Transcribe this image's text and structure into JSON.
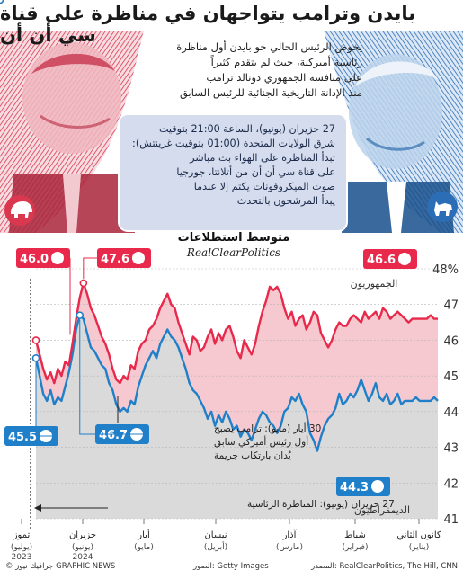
{
  "title": "بايدن وترامب يتواجهان في مناظرة على قناة سي أن أن",
  "intro": [
    "يخوض الرئيس الحالي جو بايدن أول مناظرة",
    "رئاسية أميركية، حيث لم يتقدم كثيراً",
    "على منافسه الجمهوري دونالد ترامب",
    "منذ الإدانة التاريخية الجنائية للرئيس السابق"
  ],
  "info_box": {
    "lines": [
      "27 حزيران (يونيو)، الساعة 21:00 بتوقيت",
      "شرق الولايات المتحدة (01:00 بتوقيت غرينتش):",
      "تبدأ المناظرة على الهواء بث مباشر",
      "على قناة سي أن أن من أتلانتا، جورجيا"
    ],
    "sub": [
      "صوت الميكروفونات يكتم إلا عندما",
      "يبدأ المرشحون بالتحدث"
    ]
  },
  "colors": {
    "republican": "#e8294b",
    "democrat": "#1f7fc9",
    "rep_fill": "#f5c9cf",
    "gap_fill": "#dadada",
    "info_box": "#d4dcee"
  },
  "chart_data": {
    "type": "line",
    "title": "متوسط استطلاعات",
    "subtitle": "RealClearPolitics",
    "ylim": [
      41,
      48
    ],
    "y_ticks": [
      "41",
      "42",
      "43",
      "44",
      "45",
      "46",
      "47",
      "48%"
    ],
    "x_labels": [
      {
        "ar": "تموز",
        "en": "(يوليو)",
        "year": "2023"
      },
      {
        "ar": "حزيران",
        "en": "(يونيو)",
        "year": "2024"
      },
      {
        "ar": "أيار",
        "en": "(مايو)",
        "year": ""
      },
      {
        "ar": "نيسان",
        "en": "(أبريل)",
        "year": ""
      },
      {
        "ar": "آذار",
        "en": "(مارس)",
        "year": ""
      },
      {
        "ar": "شباط",
        "en": "(فبراير)",
        "year": ""
      },
      {
        "ar": "كانون الثاني",
        "en": "(يناير)",
        "year": ""
      }
    ],
    "x": [
      0,
      2,
      4,
      6,
      8,
      10,
      12,
      14,
      16,
      18,
      20,
      22,
      24,
      26,
      28,
      30,
      32,
      34,
      36,
      38,
      40,
      42,
      44,
      46,
      48,
      50,
      52,
      54,
      56,
      58,
      60,
      62,
      64,
      66,
      68,
      70,
      72,
      74,
      76,
      78,
      80,
      82,
      84,
      86,
      88,
      90,
      92,
      94,
      96,
      98,
      100,
      102,
      104,
      106,
      108,
      110,
      112,
      114,
      116,
      118,
      120,
      122,
      124,
      126,
      128,
      130,
      132,
      134,
      136,
      138,
      140,
      142,
      144,
      146,
      148,
      150,
      152,
      154,
      156,
      158,
      160,
      162,
      164,
      166,
      168,
      170,
      172,
      174,
      176,
      178,
      180,
      182,
      184,
      186,
      188,
      190,
      192,
      194,
      196,
      198,
      200,
      202,
      204,
      206,
      208,
      210,
      212,
      214,
      216,
      218,
      220
    ],
    "series": [
      {
        "name": "الجمهوريون",
        "color": "#e8294b",
        "values": [
          46.0,
          45.6,
          45.2,
          44.9,
          45.1,
          44.8,
          45.2,
          45.0,
          45.4,
          45.3,
          45.9,
          46.6,
          47.2,
          47.6,
          47.3,
          46.9,
          46.7,
          46.4,
          46.1,
          45.9,
          45.6,
          45.2,
          44.9,
          44.8,
          45.0,
          44.9,
          45.3,
          45.2,
          45.7,
          45.9,
          46.0,
          46.3,
          46.4,
          46.6,
          46.9,
          47.1,
          47.3,
          47.0,
          46.9,
          46.5,
          46.2,
          45.9,
          45.6,
          46.1,
          46.0,
          45.7,
          45.8,
          46.1,
          46.3,
          45.9,
          46.2,
          46.0,
          46.3,
          46.4,
          46.1,
          45.7,
          45.5,
          46.0,
          45.8,
          45.6,
          45.9,
          46.4,
          46.8,
          47.1,
          47.5,
          47.4,
          47.5,
          47.3,
          46.9,
          46.6,
          46.8,
          46.4,
          46.6,
          46.7,
          46.3,
          46.5,
          46.8,
          46.7,
          46.2,
          46.0,
          45.8,
          46.0,
          46.3,
          46.5,
          46.4,
          46.4,
          46.6,
          46.7,
          46.6,
          46.5,
          46.8,
          46.6,
          46.7,
          46.8,
          46.6,
          46.9,
          46.8,
          46.6,
          46.7,
          46.8,
          46.7,
          46.6,
          46.5,
          46.6,
          46.6,
          46.6,
          46.6,
          46.6,
          46.7,
          46.6,
          46.6
        ]
      },
      {
        "name": "الديمقراطيون",
        "color": "#1f7fc9",
        "values": [
          45.5,
          45.0,
          44.5,
          44.3,
          44.6,
          44.2,
          44.4,
          44.3,
          44.7,
          45.1,
          45.6,
          46.3,
          46.7,
          46.6,
          46.2,
          45.8,
          45.7,
          45.5,
          45.3,
          45.2,
          44.8,
          44.6,
          44.2,
          44.0,
          44.1,
          44.0,
          44.3,
          44.2,
          44.7,
          45.0,
          45.3,
          45.5,
          45.7,
          45.5,
          45.9,
          46.1,
          46.3,
          46.1,
          46.0,
          45.8,
          45.5,
          45.2,
          44.8,
          44.6,
          44.5,
          44.3,
          44.1,
          43.8,
          44.0,
          43.6,
          43.9,
          43.7,
          44.0,
          43.8,
          43.5,
          43.6,
          43.3,
          43.5,
          43.4,
          43.2,
          43.5,
          43.8,
          44.0,
          43.9,
          43.7,
          43.6,
          43.4,
          43.6,
          44.0,
          44.1,
          44.4,
          44.3,
          44.5,
          44.2,
          44.0,
          43.4,
          43.2,
          42.9,
          43.3,
          43.6,
          43.8,
          43.9,
          44.1,
          44.5,
          44.2,
          44.3,
          44.5,
          44.4,
          44.6,
          44.9,
          44.6,
          44.3,
          44.5,
          44.8,
          44.4,
          44.3,
          44.5,
          44.2,
          44.3,
          44.5,
          44.2,
          44.3,
          44.3,
          44.3,
          44.4,
          44.3,
          44.3,
          44.3,
          44.3,
          44.4,
          44.3
        ]
      }
    ],
    "callouts": {
      "rep_now": "46.0",
      "rep_peak": "47.6",
      "rep_start": "46.6",
      "dem_now": "45.5",
      "dem_peak": "46.7",
      "dem_start": "44.3"
    },
    "legend": {
      "rep": "الجمهوريون",
      "dem": "الديمقراطيون"
    },
    "annotations": {
      "verdict": [
        "30 أيار (مايو): ترامب يصبح",
        "أول رئيس أميركي سابق",
        "يُدان بارتكاب جريمة"
      ],
      "debate": "27 حزيران (يونيو): المناظرة الرئاسية"
    }
  },
  "footer": {
    "left": "© جرافيك نيوز GRAPHIC NEWS",
    "mid": "الصور: Getty Images",
    "right": "المصدر: RealClearPolitics, The Hill, CNN"
  }
}
